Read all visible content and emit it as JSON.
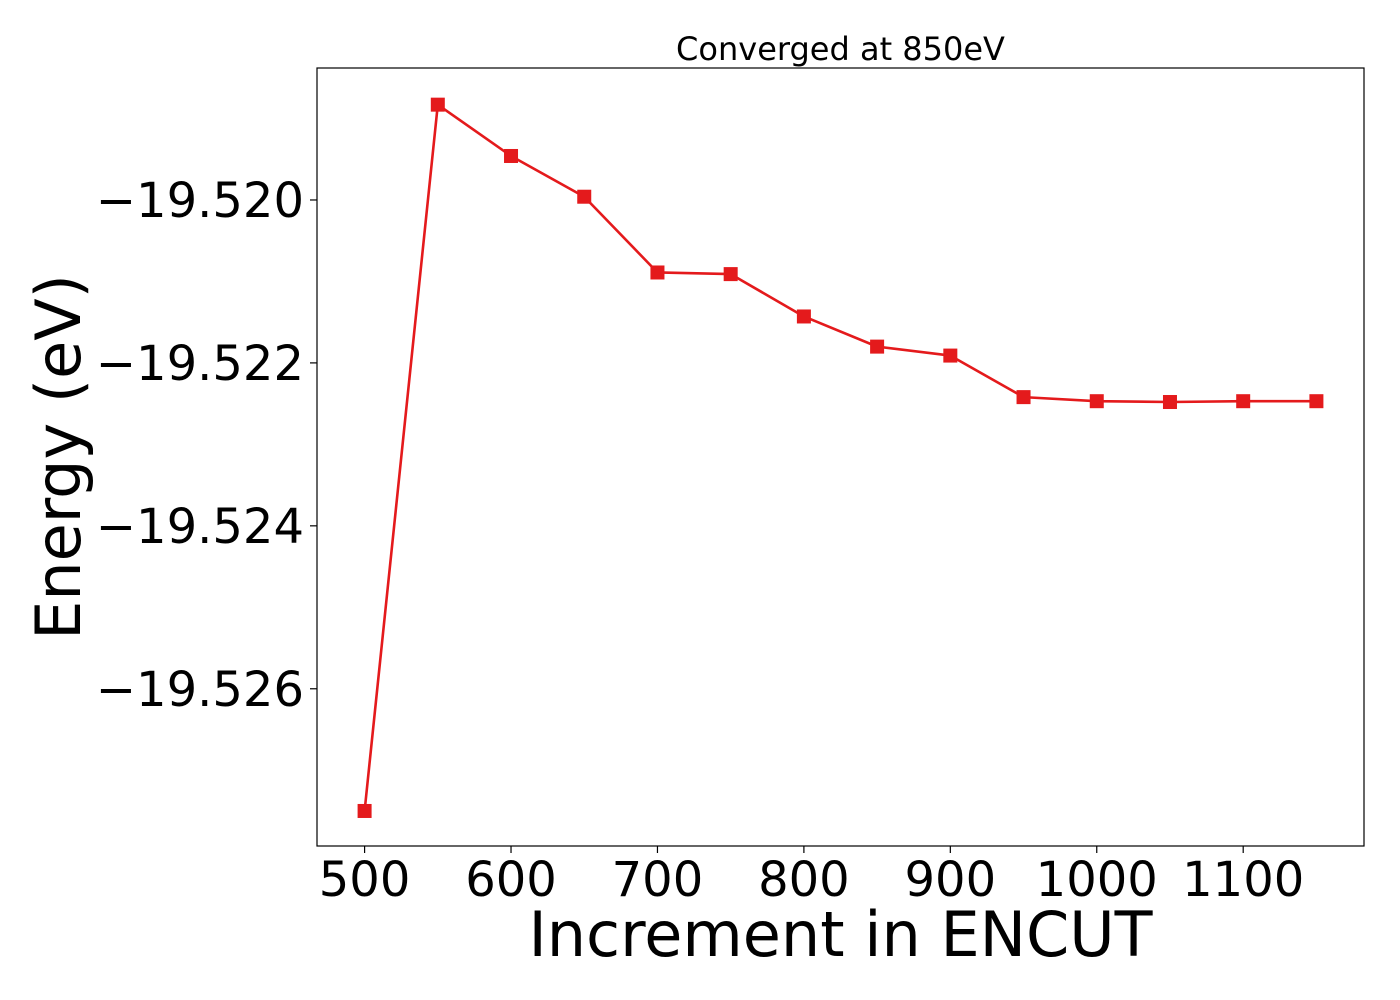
{
  "chart_data": {
    "type": "line",
    "title": "Converged at 850eV",
    "xlabel": "Increment in ENCUT",
    "ylabel": "Energy (eV)",
    "x": [
      500,
      550,
      600,
      650,
      700,
      750,
      800,
      850,
      900,
      950,
      1000,
      1050,
      1100,
      1150
    ],
    "series": [
      {
        "values": [
          -19.5275,
          -19.51883,
          -19.51946,
          -19.51996,
          -19.52089,
          -19.52091,
          -19.52143,
          -19.5218,
          -19.52191,
          -19.52242,
          -19.52247,
          -19.52248,
          -19.52247,
          -19.52247
        ]
      }
    ],
    "xticks": [
      500,
      600,
      700,
      800,
      900,
      1000,
      1100
    ],
    "xtick_labels": [
      "500",
      "600",
      "700",
      "800",
      "900",
      "1000",
      "1100"
    ],
    "yticks": [
      -19.52,
      -19.522,
      -19.524,
      -19.526
    ],
    "ytick_labels": [
      "−19.520",
      "−19.522",
      "−19.524",
      "−19.526"
    ],
    "xlim": [
      467.5,
      1182.5
    ],
    "ylim": [
      -19.52793,
      -19.51838
    ],
    "marker": "square",
    "colors": {
      "series": "#e41a1c",
      "axes": "#000000"
    },
    "grid": false,
    "legend": "none"
  }
}
